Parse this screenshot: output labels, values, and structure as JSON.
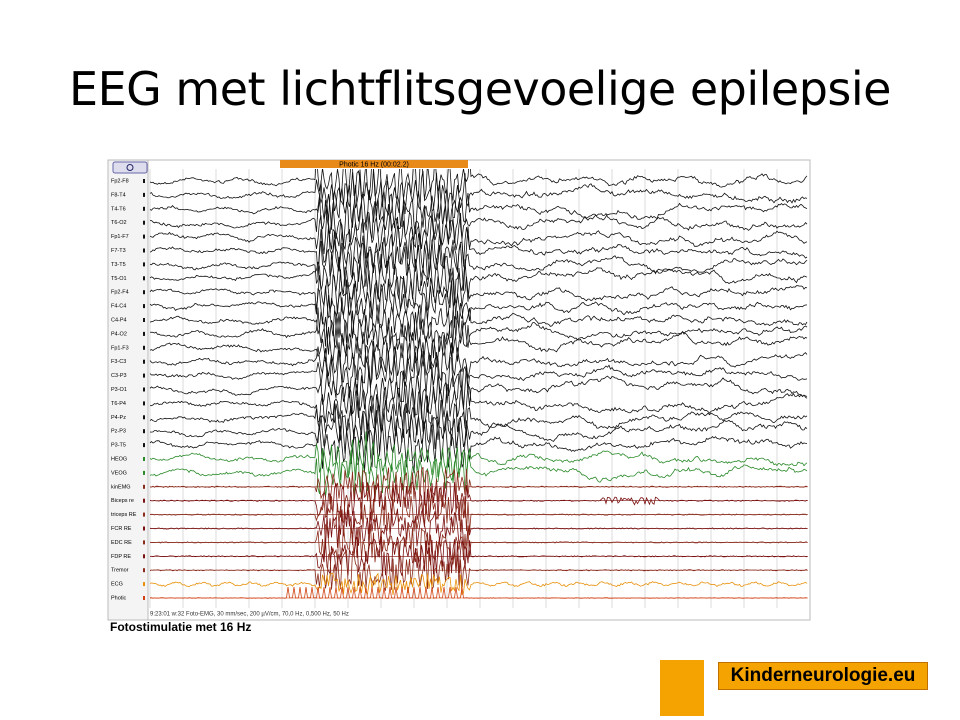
{
  "title": "EEG met lichtflitsgevoelige epilepsie",
  "eeg": {
    "marker": "Photic 16 Hz (00:02.2)",
    "channels": [
      "Fp2-F8",
      "F8-T4",
      "T4-T6",
      "T6-O2",
      "Fp1-F7",
      "F7-T3",
      "T3-T5",
      "T5-O1",
      "Fp2-F4",
      "F4-C4",
      "C4-P4",
      "P4-O2",
      "Fp1-F3",
      "F3-C3",
      "C3-P3",
      "P3-O1",
      "T6-P4",
      "P4-Pz",
      "Pz-P3",
      "P3-T5",
      "HEOG",
      "VEOG",
      "kinEMG",
      "Biceps re",
      "triceps RE",
      "FCR RE",
      "EDC RE",
      "FDP RE",
      "Tremor",
      "ECG",
      "Photic"
    ],
    "info": "9:23:01 w:32 Foto-EMG, 30 mm/sec, 200 µV/cm, 70,0 Hz, 0,500 Hz, 50 Hz",
    "caption": "Fotostimulatie met 16 Hz"
  },
  "logo": "Kinderneurologie.eu"
}
